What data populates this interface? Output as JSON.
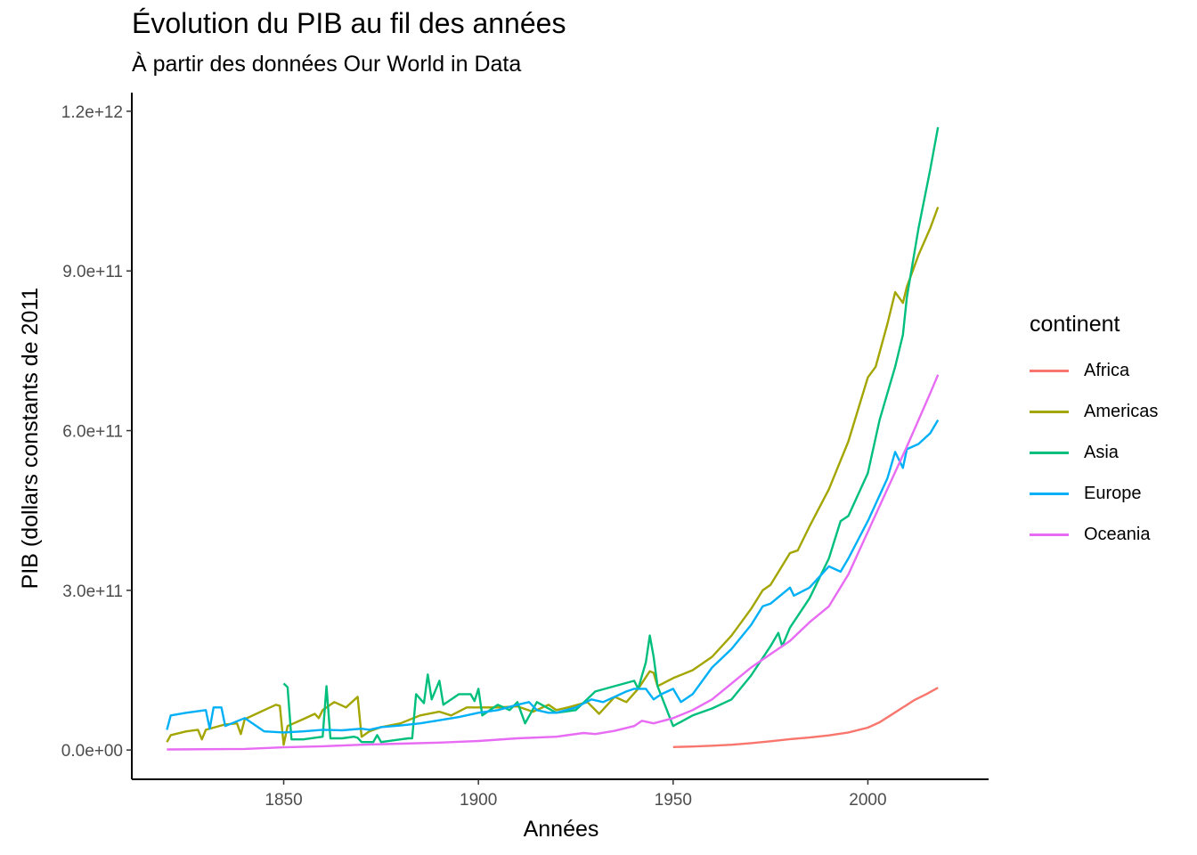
{
  "chart_data": {
    "type": "line",
    "title": "Évolution du PIB au fil des années",
    "subtitle": "À partir des données Our World in Data",
    "xlabel": "Années",
    "ylabel": "PIB (dollars constants de 2011",
    "xlim": [
      1811,
      2031
    ],
    "ylim": [
      -55000000000,
      1235000000000
    ],
    "x_ticks": [
      1850,
      1900,
      1950,
      2000
    ],
    "x_tick_labels": [
      "1850",
      "1900",
      "1950",
      "2000"
    ],
    "y_ticks": [
      0,
      300000000000,
      600000000000,
      900000000000,
      1200000000000
    ],
    "y_tick_labels": [
      "0.0e+00",
      "3.0e+11",
      "6.0e+11",
      "9.0e+11",
      "1.2e+12"
    ],
    "grid": false,
    "legend": {
      "title": "continent",
      "position": "right"
    },
    "series": [
      {
        "name": "Africa",
        "color": "#F8766D",
        "points": [
          [
            1950,
            5500000000.0
          ],
          [
            1955,
            6500000000.0
          ],
          [
            1960,
            8000000000.0
          ],
          [
            1965,
            10000000000.0
          ],
          [
            1970,
            13000000000.0
          ],
          [
            1975,
            16500000000.0
          ],
          [
            1980,
            20500000000.0
          ],
          [
            1985,
            23500000000.0
          ],
          [
            1990,
            27500000000.0
          ],
          [
            1995,
            33000000000.0
          ],
          [
            2000,
            42000000000.0
          ],
          [
            2003,
            52000000000.0
          ],
          [
            2006,
            66000000000.0
          ],
          [
            2009,
            80000000000.0
          ],
          [
            2012,
            94000000000.0
          ],
          [
            2015,
            105000000000.0
          ],
          [
            2018,
            117000000000.0
          ]
        ]
      },
      {
        "name": "Americas",
        "color": "#A3A500",
        "points": [
          [
            1820,
            15000000000.0
          ],
          [
            1821,
            28000000000.0
          ],
          [
            1825,
            35000000000.0
          ],
          [
            1828,
            38000000000.0
          ],
          [
            1829,
            20000000000.0
          ],
          [
            1830,
            38000000000.0
          ],
          [
            1835,
            48000000000.0
          ],
          [
            1838,
            50000000000.0
          ],
          [
            1839,
            30000000000.0
          ],
          [
            1840,
            58000000000.0
          ],
          [
            1845,
            75000000000.0
          ],
          [
            1848,
            85000000000.0
          ],
          [
            1849,
            83000000000.0
          ],
          [
            1850,
            10000000000.0
          ],
          [
            1851,
            45000000000.0
          ],
          [
            1855,
            58000000000.0
          ],
          [
            1858,
            68000000000.0
          ],
          [
            1859,
            60000000000.0
          ],
          [
            1860,
            75000000000.0
          ],
          [
            1863,
            90000000000.0
          ],
          [
            1866,
            80000000000.0
          ],
          [
            1869,
            100000000000.0
          ],
          [
            1870,
            25000000000.0
          ],
          [
            1872,
            35000000000.0
          ],
          [
            1875,
            43000000000.0
          ],
          [
            1880,
            50000000000.0
          ],
          [
            1885,
            65000000000.0
          ],
          [
            1890,
            72000000000.0
          ],
          [
            1893,
            65000000000.0
          ],
          [
            1897,
            80000000000.0
          ],
          [
            1900,
            80000000000.0
          ],
          [
            1905,
            80000000000.0
          ],
          [
            1910,
            82000000000.0
          ],
          [
            1914,
            72000000000.0
          ],
          [
            1918,
            85000000000.0
          ],
          [
            1920,
            75000000000.0
          ],
          [
            1923,
            80000000000.0
          ],
          [
            1928,
            90000000000.0
          ],
          [
            1931,
            68000000000.0
          ],
          [
            1935,
            100000000000.0
          ],
          [
            1938,
            90000000000.0
          ],
          [
            1941,
            115000000000.0
          ],
          [
            1944,
            148000000000.0
          ],
          [
            1945,
            145000000000.0
          ],
          [
            1946,
            120000000000.0
          ],
          [
            1950,
            135000000000.0
          ],
          [
            1955,
            150000000000.0
          ],
          [
            1960,
            175000000000.0
          ],
          [
            1965,
            215000000000.0
          ],
          [
            1970,
            265000000000.0
          ],
          [
            1973,
            300000000000.0
          ],
          [
            1975,
            310000000000.0
          ],
          [
            1980,
            370000000000.0
          ],
          [
            1982,
            375000000000.0
          ],
          [
            1985,
            420000000000.0
          ],
          [
            1990,
            490000000000.0
          ],
          [
            1995,
            580000000000.0
          ],
          [
            2000,
            700000000000.0
          ],
          [
            2002,
            720000000000.0
          ],
          [
            2005,
            800000000000.0
          ],
          [
            2007,
            860000000000.0
          ],
          [
            2009,
            840000000000.0
          ],
          [
            2010,
            870000000000.0
          ],
          [
            2013,
            930000000000.0
          ],
          [
            2016,
            980000000000.0
          ],
          [
            2018,
            1020000000000.0
          ]
        ]
      },
      {
        "name": "Asia",
        "color": "#00BF7D",
        "points": [
          [
            1850,
            125000000000.0
          ],
          [
            1851,
            118000000000.0
          ],
          [
            1852,
            20000000000.0
          ],
          [
            1855,
            20000000000.0
          ],
          [
            1860,
            25000000000.0
          ],
          [
            1861,
            120000000000.0
          ],
          [
            1862,
            22000000000.0
          ],
          [
            1865,
            22000000000.0
          ],
          [
            1868,
            25000000000.0
          ],
          [
            1869,
            23000000000.0
          ],
          [
            1870,
            15000000000.0
          ],
          [
            1873,
            15000000000.0
          ],
          [
            1874,
            28000000000.0
          ],
          [
            1875,
            15000000000.0
          ],
          [
            1880,
            20000000000.0
          ],
          [
            1882,
            22000000000.0
          ],
          [
            1883,
            22000000000.0
          ],
          [
            1884,
            105000000000.0
          ],
          [
            1886,
            88000000000.0
          ],
          [
            1887,
            142000000000.0
          ],
          [
            1888,
            95000000000.0
          ],
          [
            1890,
            130000000000.0
          ],
          [
            1891,
            85000000000.0
          ],
          [
            1895,
            105000000000.0
          ],
          [
            1898,
            105000000000.0
          ],
          [
            1899,
            92000000000.0
          ],
          [
            1900,
            115000000000.0
          ],
          [
            1901,
            65000000000.0
          ],
          [
            1905,
            85000000000.0
          ],
          [
            1908,
            75000000000.0
          ],
          [
            1910,
            90000000000.0
          ],
          [
            1912,
            50000000000.0
          ],
          [
            1915,
            90000000000.0
          ],
          [
            1920,
            70000000000.0
          ],
          [
            1925,
            75000000000.0
          ],
          [
            1930,
            110000000000.0
          ],
          [
            1935,
            120000000000.0
          ],
          [
            1940,
            130000000000.0
          ],
          [
            1941,
            115000000000.0
          ],
          [
            1943,
            165000000000.0
          ],
          [
            1944,
            215000000000.0
          ],
          [
            1945,
            175000000000.0
          ],
          [
            1946,
            120000000000.0
          ],
          [
            1950,
            45000000000.0
          ],
          [
            1955,
            65000000000.0
          ],
          [
            1960,
            78000000000.0
          ],
          [
            1965,
            95000000000.0
          ],
          [
            1970,
            140000000000.0
          ],
          [
            1975,
            195000000000.0
          ],
          [
            1977,
            220000000000.0
          ],
          [
            1978,
            195000000000.0
          ],
          [
            1980,
            230000000000.0
          ],
          [
            1985,
            285000000000.0
          ],
          [
            1990,
            360000000000.0
          ],
          [
            1993,
            430000000000.0
          ],
          [
            1995,
            440000000000.0
          ],
          [
            2000,
            520000000000.0
          ],
          [
            2003,
            620000000000.0
          ],
          [
            2007,
            720000000000.0
          ],
          [
            2009,
            780000000000.0
          ],
          [
            2010,
            850000000000.0
          ],
          [
            2013,
            980000000000.0
          ],
          [
            2016,
            1090000000000.0
          ],
          [
            2018,
            1170000000000.0
          ]
        ]
      },
      {
        "name": "Europe",
        "color": "#00B0F6",
        "points": [
          [
            1820,
            38000000000.0
          ],
          [
            1821,
            65000000000.0
          ],
          [
            1825,
            70000000000.0
          ],
          [
            1830,
            75000000000.0
          ],
          [
            1831,
            40000000000.0
          ],
          [
            1832,
            80000000000.0
          ],
          [
            1834,
            80000000000.0
          ],
          [
            1835,
            45000000000.0
          ],
          [
            1840,
            60000000000.0
          ],
          [
            1845,
            35000000000.0
          ],
          [
            1850,
            33000000000.0
          ],
          [
            1855,
            35000000000.0
          ],
          [
            1860,
            38000000000.0
          ],
          [
            1865,
            37000000000.0
          ],
          [
            1870,
            40000000000.0
          ],
          [
            1872,
            38000000000.0
          ],
          [
            1875,
            43000000000.0
          ],
          [
            1880,
            46000000000.0
          ],
          [
            1885,
            50000000000.0
          ],
          [
            1890,
            56000000000.0
          ],
          [
            1895,
            62000000000.0
          ],
          [
            1900,
            70000000000.0
          ],
          [
            1905,
            75000000000.0
          ],
          [
            1910,
            85000000000.0
          ],
          [
            1913,
            90000000000.0
          ],
          [
            1915,
            75000000000.0
          ],
          [
            1918,
            70000000000.0
          ],
          [
            1920,
            70000000000.0
          ],
          [
            1925,
            80000000000.0
          ],
          [
            1929,
            95000000000.0
          ],
          [
            1932,
            90000000000.0
          ],
          [
            1935,
            100000000000.0
          ],
          [
            1938,
            110000000000.0
          ],
          [
            1940,
            115000000000.0
          ],
          [
            1943,
            115000000000.0
          ],
          [
            1945,
            95000000000.0
          ],
          [
            1947,
            105000000000.0
          ],
          [
            1950,
            115000000000.0
          ],
          [
            1952,
            90000000000.0
          ],
          [
            1955,
            105000000000.0
          ],
          [
            1960,
            155000000000.0
          ],
          [
            1965,
            190000000000.0
          ],
          [
            1970,
            235000000000.0
          ],
          [
            1973,
            270000000000.0
          ],
          [
            1975,
            275000000000.0
          ],
          [
            1980,
            305000000000.0
          ],
          [
            1981,
            290000000000.0
          ],
          [
            1985,
            305000000000.0
          ],
          [
            1990,
            345000000000.0
          ],
          [
            1993,
            335000000000.0
          ],
          [
            1995,
            360000000000.0
          ],
          [
            2000,
            430000000000.0
          ],
          [
            2005,
            510000000000.0
          ],
          [
            2007,
            560000000000.0
          ],
          [
            2009,
            530000000000.0
          ],
          [
            2010,
            565000000000.0
          ],
          [
            2013,
            575000000000.0
          ],
          [
            2016,
            595000000000.0
          ],
          [
            2018,
            620000000000.0
          ]
        ]
      },
      {
        "name": "Oceania",
        "color": "#E76BF3",
        "points": [
          [
            1820,
            1000000000.0
          ],
          [
            1840,
            2000000000.0
          ],
          [
            1850,
            5000000000.0
          ],
          [
            1860,
            7000000000.0
          ],
          [
            1870,
            10000000000.0
          ],
          [
            1880,
            12000000000.0
          ],
          [
            1890,
            14000000000.0
          ],
          [
            1900,
            17000000000.0
          ],
          [
            1910,
            22000000000.0
          ],
          [
            1920,
            25000000000.0
          ],
          [
            1927,
            32000000000.0
          ],
          [
            1930,
            30000000000.0
          ],
          [
            1935,
            36000000000.0
          ],
          [
            1940,
            45000000000.0
          ],
          [
            1942,
            55000000000.0
          ],
          [
            1945,
            50000000000.0
          ],
          [
            1950,
            60000000000.0
          ],
          [
            1955,
            75000000000.0
          ],
          [
            1960,
            95000000000.0
          ],
          [
            1965,
            125000000000.0
          ],
          [
            1970,
            155000000000.0
          ],
          [
            1975,
            180000000000.0
          ],
          [
            1980,
            205000000000.0
          ],
          [
            1985,
            240000000000.0
          ],
          [
            1990,
            270000000000.0
          ],
          [
            1995,
            330000000000.0
          ],
          [
            2000,
            410000000000.0
          ],
          [
            2005,
            490000000000.0
          ],
          [
            2010,
            570000000000.0
          ],
          [
            2013,
            620000000000.0
          ],
          [
            2016,
            670000000000.0
          ],
          [
            2018,
            705000000000.0
          ]
        ]
      }
    ]
  }
}
